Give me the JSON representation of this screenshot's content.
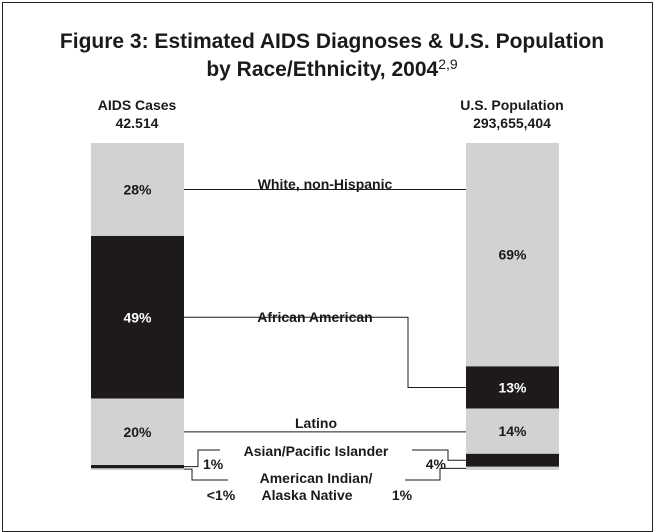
{
  "chart_data": {
    "type": "stacked-bar",
    "title_line1": "Figure 3: Estimated AIDS Diagnoses & U.S. Population",
    "title_line2": "by Race/Ethnicity, 2004",
    "title_superscript": "2,9",
    "bars": [
      {
        "name": "AIDS Cases",
        "total": "42.514",
        "segments": [
          {
            "category": "White, non-Hispanic",
            "value": 28,
            "label": "28%"
          },
          {
            "category": "African American",
            "value": 49,
            "label": "49%"
          },
          {
            "category": "Latino",
            "value": 20,
            "label": "20%"
          },
          {
            "category": "Asian/Pacific Islander",
            "value": 1,
            "label": "1%"
          },
          {
            "category": "American Indian/Alaska Native",
            "value": 0.5,
            "label": "<1%"
          }
        ]
      },
      {
        "name": "U.S. Population",
        "total": "293,655,404",
        "segments": [
          {
            "category": "White, non-Hispanic",
            "value": 69,
            "label": "69%"
          },
          {
            "category": "African American",
            "value": 13,
            "label": "13%"
          },
          {
            "category": "Latino",
            "value": 14,
            "label": "14%"
          },
          {
            "category": "Asian/Pacific Islander",
            "value": 4,
            "label": "4%"
          },
          {
            "category": "American Indian/Alaska Native",
            "value": 1,
            "label": "1%"
          }
        ]
      }
    ],
    "categories": [
      {
        "name": "White, non-Hispanic",
        "color": "#d2d2d2"
      },
      {
        "name": "African American",
        "color": "#1e1a1b"
      },
      {
        "name": "Latino",
        "color": "#d2d2d2"
      },
      {
        "name": "Asian/Pacific Islander",
        "color": "#1e1a1b"
      },
      {
        "name": "American Indian/Alaska Native",
        "color": "#d2d2d2"
      }
    ],
    "category_labels": {
      "white": "White, non-Hispanic",
      "african_american": "African American",
      "latino": "Latino",
      "asian": "Asian/Pacific Islander",
      "american_indian_line1": "American Indian/",
      "american_indian_line2": "Alaska Native"
    }
  }
}
